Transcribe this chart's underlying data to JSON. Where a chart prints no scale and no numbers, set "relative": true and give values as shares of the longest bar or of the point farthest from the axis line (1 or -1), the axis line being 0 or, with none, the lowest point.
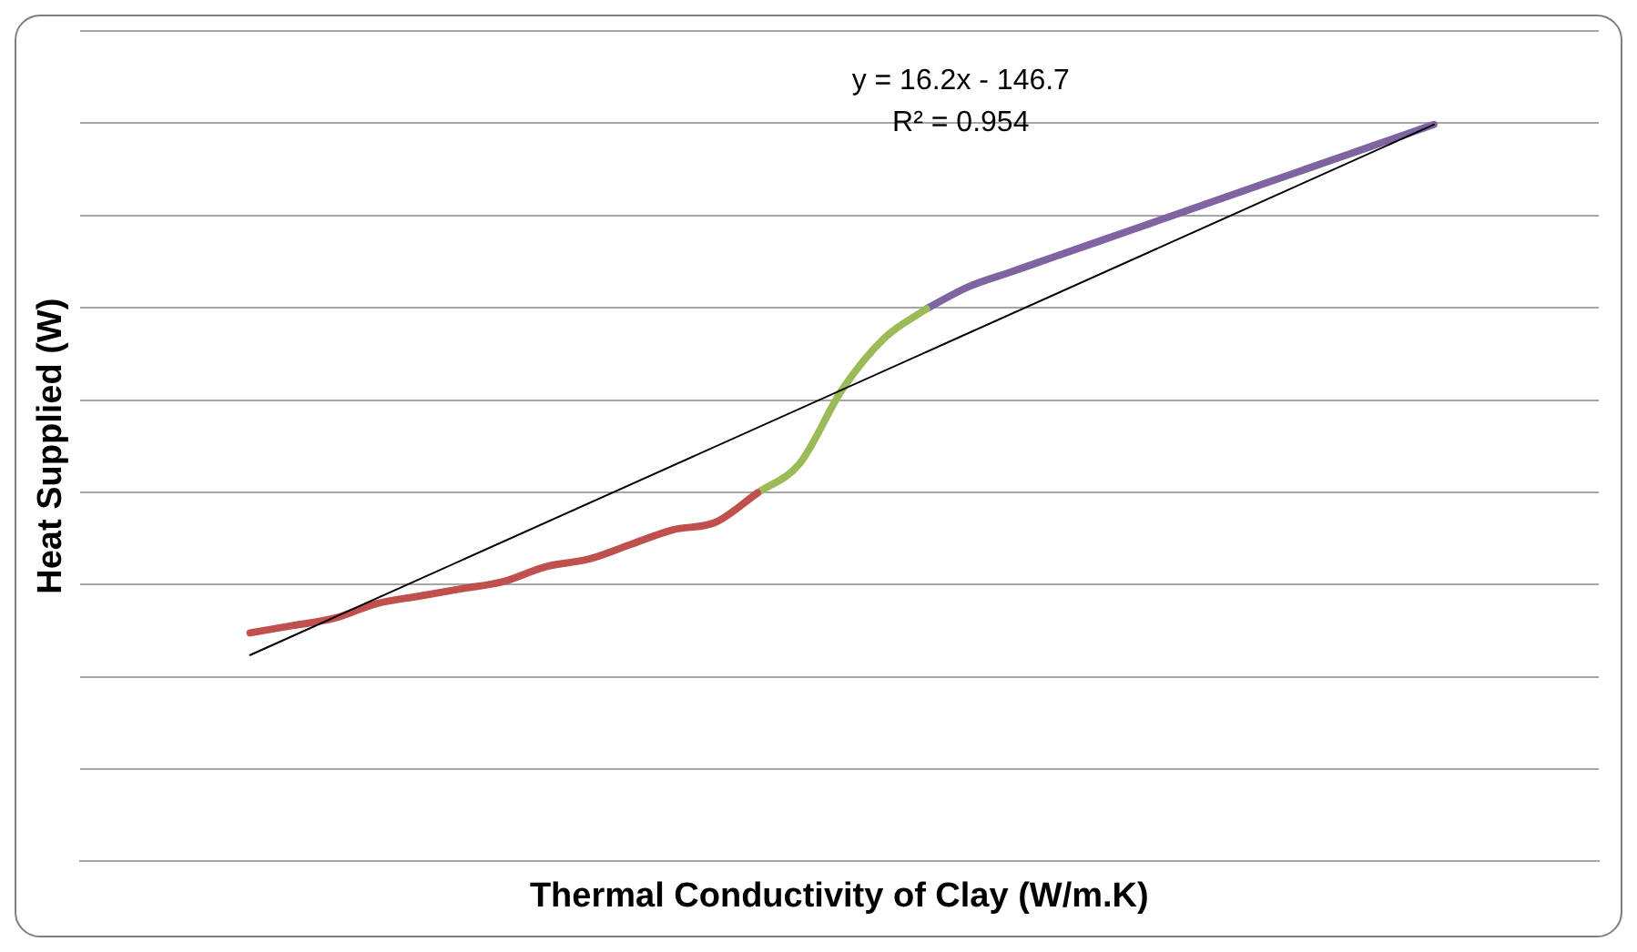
{
  "chart_data": {
    "type": "line",
    "relative": true,
    "xlabel": "Thermal Conductivity of Clay (W/m.K)",
    "ylabel": "Heat Supplied (W)",
    "annotations": [
      "y = 16.2x - 146.7",
      "R² = 0.954"
    ],
    "grid": "y",
    "legend": false,
    "categories": [
      null,
      null,
      null,
      null,
      null,
      null,
      null,
      null,
      null,
      null,
      null,
      null,
      null,
      null,
      null,
      null,
      null,
      null,
      null,
      null,
      null,
      null,
      null,
      null,
      null,
      null,
      null,
      null,
      null
    ],
    "series": [
      {
        "color": "#c0504d",
        "values": [
          0.31,
          0.32,
          0.33,
          0.35,
          0.36,
          0.37,
          0.38,
          0.4,
          0.41,
          0.43,
          0.45,
          0.46,
          0.5,
          null,
          null,
          null,
          null,
          null,
          null,
          null,
          null,
          null,
          null,
          null,
          null,
          null,
          null,
          null,
          null
        ]
      },
      {
        "color": "#9bbb59",
        "values": [
          null,
          null,
          null,
          null,
          null,
          null,
          null,
          null,
          null,
          null,
          null,
          null,
          0.5,
          0.54,
          0.64,
          0.71,
          0.75,
          null,
          null,
          null,
          null,
          null,
          null,
          null,
          null,
          null,
          null,
          null,
          null
        ]
      },
      {
        "color": "#8064a2",
        "values": [
          null,
          null,
          null,
          null,
          null,
          null,
          null,
          null,
          null,
          null,
          null,
          null,
          null,
          null,
          null,
          null,
          0.75,
          0.78,
          0.8,
          0.82,
          0.84,
          0.86,
          0.88,
          0.9,
          0.92,
          0.94,
          0.96,
          0.98,
          1
        ]
      },
      {
        "color": "#000000",
        "values": [
          0.28,
          null,
          null,
          null,
          null,
          null,
          null,
          null,
          null,
          null,
          null,
          null,
          null,
          null,
          null,
          null,
          null,
          null,
          null,
          null,
          null,
          null,
          null,
          null,
          null,
          null,
          null,
          null,
          1
        ]
      }
    ]
  }
}
